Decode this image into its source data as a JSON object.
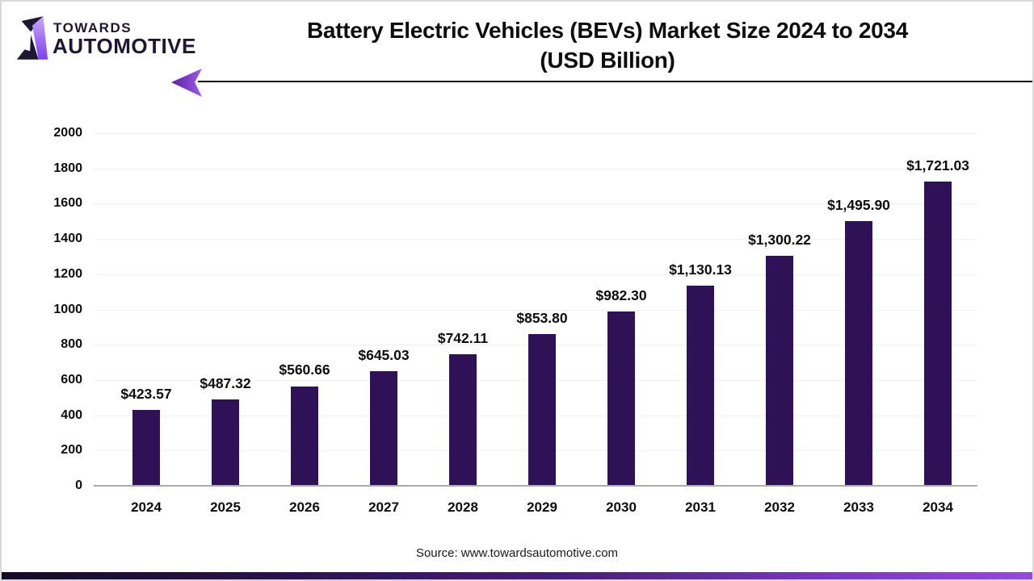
{
  "logo": {
    "line1": "TOWARDS",
    "line2": "AUTOMOTIVE"
  },
  "title": {
    "line1": "Battery Electric Vehicles (BEVs) Market Size 2024 to 2034",
    "line2": "(USD Billion)"
  },
  "source": "Source: www.towardsautomotive.com",
  "colors": {
    "bar": "#2e1156",
    "accent_purple": "#9448e8",
    "logo_text": "#1e1733",
    "axis_line": "#ababab",
    "gridline": "#f1f1f1",
    "divider": "#111111",
    "bottom_gradient_left": "#150a26",
    "bottom_gradient_right": "#9448e8"
  },
  "chart_data": {
    "type": "bar",
    "title": "Battery Electric Vehicles (BEVs) Market Size 2024 to 2034 (USD Billion)",
    "categories": [
      "2024",
      "2025",
      "2026",
      "2027",
      "2028",
      "2029",
      "2030",
      "2031",
      "2032",
      "2033",
      "2034"
    ],
    "values": [
      423.57,
      487.32,
      560.66,
      645.03,
      742.11,
      853.8,
      982.3,
      1130.13,
      1300.22,
      1495.9,
      1721.03
    ],
    "value_labels": [
      "$423.57",
      "$487.32",
      "$560.66",
      "$645.03",
      "$742.11",
      "$853.80",
      "$982.30",
      "$1,130.13",
      "$1,300.22",
      "$1,495.90",
      "$1,721.03"
    ],
    "xlabel": "",
    "ylabel": "",
    "ylim": [
      0,
      2000
    ],
    "ytick_step": 200,
    "grid": true,
    "legend": false,
    "bar_color": "#2e1156"
  }
}
